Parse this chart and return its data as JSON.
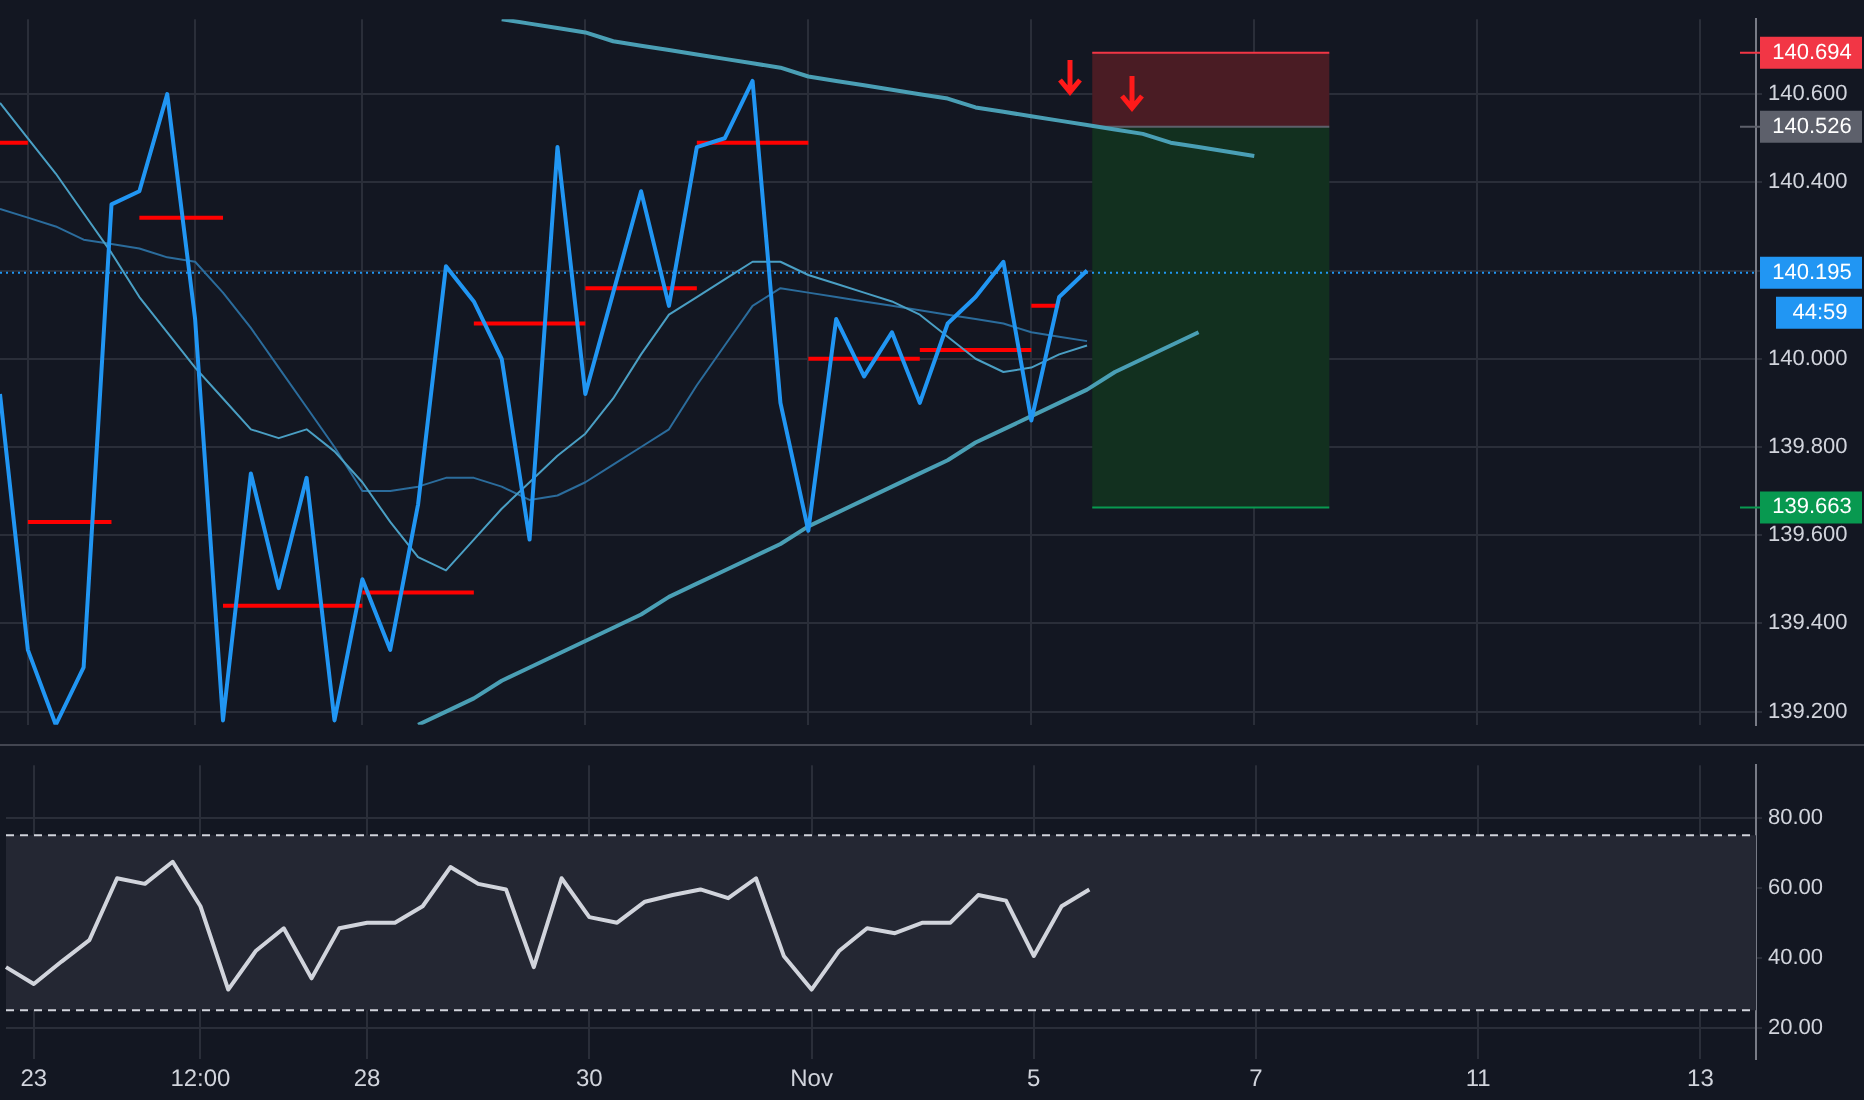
{
  "chart_data": [
    {
      "type": "line",
      "categories": [
        null,
        null,
        null,
        null,
        null,
        null,
        null,
        null,
        null,
        null,
        null,
        null,
        null,
        null,
        null,
        null,
        null,
        null,
        null,
        null,
        null,
        null,
        null,
        null,
        null,
        null,
        null,
        null,
        null,
        null,
        null,
        null,
        null,
        null,
        null,
        null,
        null,
        null,
        null,
        null,
        null,
        null,
        null,
        null,
        null,
        null,
        null,
        null,
        null,
        null,
        null,
        null,
        null,
        null,
        null,
        null,
        null,
        null,
        null,
        null,
        null,
        null,
        null,
        null
      ],
      "ylim": [
        139.17,
        140.77
      ],
      "yticks": [
        {
          "value": 139.2,
          "label": "139.200"
        },
        {
          "value": 139.4,
          "label": "139.400"
        },
        {
          "value": 139.6,
          "label": "139.600"
        },
        {
          "value": 139.8,
          "label": "139.800"
        },
        {
          "value": 140,
          "label": "140.000"
        },
        {
          "value": 140.2,
          "label": null
        },
        {
          "value": 140.4,
          "label": "140.400"
        },
        {
          "value": 140.6,
          "label": "140.600"
        }
      ],
      "grid": true,
      "tick_labels": "y",
      "series": [
        {
          "color": "#2196f3",
          "values": [
            139.92,
            139.34,
            139.17,
            139.3,
            140.35,
            140.38,
            140.6,
            140.09,
            139.18,
            139.74,
            139.48,
            139.73,
            139.18,
            139.5,
            139.34,
            139.67,
            140.21,
            140.13,
            140,
            139.59,
            140.48,
            139.92,
            140.15,
            140.38,
            140.12,
            140.48,
            140.5,
            140.63,
            139.9,
            139.61,
            140.09,
            139.96,
            140.06,
            139.9,
            140.08,
            140.14,
            140.22,
            139.86,
            140.14,
            140.2,
            null,
            null,
            null,
            null,
            null,
            null,
            null,
            null,
            null,
            null,
            null,
            null,
            null,
            null,
            null,
            null,
            null,
            null,
            null,
            null,
            null,
            null,
            null,
            null
          ]
        },
        {
          "color": "#4a9fc4",
          "values": [
            140.58,
            140.5,
            140.42,
            140.33,
            140.24,
            140.14,
            140.06,
            139.98,
            139.91,
            139.84,
            139.82,
            139.84,
            139.79,
            139.72,
            139.63,
            139.55,
            139.52,
            139.59,
            139.66,
            139.72,
            139.78,
            139.83,
            139.91,
            140.01,
            140.1,
            140.14,
            140.18,
            140.22,
            140.22,
            140.19,
            140.17,
            140.15,
            140.13,
            140.1,
            140.05,
            140,
            139.97,
            139.98,
            140.01,
            140.03,
            null,
            null,
            null,
            null,
            null,
            null,
            null,
            null,
            null,
            null,
            null,
            null,
            null,
            null,
            null,
            null,
            null,
            null,
            null,
            null,
            null,
            null,
            null,
            null
          ]
        },
        {
          "color": "#2b6c9c",
          "values": [
            140.34,
            140.32,
            140.3,
            140.27,
            140.26,
            140.25,
            140.23,
            140.22,
            140.15,
            140.07,
            139.98,
            139.89,
            139.8,
            139.7,
            139.7,
            139.71,
            139.73,
            139.73,
            139.71,
            139.68,
            139.69,
            139.72,
            139.76,
            139.8,
            139.84,
            139.94,
            140.03,
            140.12,
            140.16,
            140.15,
            140.14,
            140.13,
            140.12,
            140.11,
            140.1,
            140.09,
            140.08,
            140.06,
            140.05,
            140.04,
            null,
            null,
            null,
            null,
            null,
            null,
            null,
            null,
            null,
            null,
            null,
            null,
            null,
            null,
            null,
            null,
            null,
            null,
            null,
            null,
            null,
            null,
            null,
            null
          ]
        },
        {
          "color": "#ff0000",
          "values": [
            140.49,
            140.49,
            null,
            null,
            null,
            140.32,
            140.32,
            140.32,
            140.32,
            null,
            null,
            null,
            null,
            139.47,
            139.47,
            139.47,
            139.47,
            139.47,
            null,
            null,
            null,
            140.16,
            140.16,
            140.16,
            140.16,
            140.16,
            null,
            null,
            null,
            140,
            140,
            140,
            140,
            140,
            null,
            null,
            null,
            140.12,
            140.12,
            null,
            null,
            null,
            null,
            null,
            null,
            null,
            null,
            null,
            null,
            null,
            null,
            null,
            null,
            null,
            null,
            null,
            null,
            null,
            null,
            null,
            null,
            null,
            null,
            null
          ]
        },
        {
          "color": "#ff0000",
          "values": [
            null,
            139.63,
            139.63,
            139.63,
            139.63,
            null,
            null,
            null,
            139.44,
            139.44,
            139.44,
            139.44,
            139.44,
            139.44,
            null,
            null,
            null,
            140.08,
            140.08,
            140.08,
            140.08,
            140.08,
            null,
            null,
            null,
            140.49,
            140.49,
            140.49,
            140.49,
            140.49,
            null,
            null,
            null,
            140.02,
            140.02,
            140.02,
            140.02,
            140.02,
            null,
            null,
            null,
            null,
            null,
            null,
            null,
            null,
            null,
            null,
            null,
            null,
            null,
            null,
            null,
            null,
            null,
            null,
            null,
            null,
            null,
            null,
            null,
            null,
            null,
            null
          ]
        },
        {
          "color": "#4a9fb5",
          "values": [
            null,
            null,
            null,
            null,
            null,
            null,
            null,
            null,
            null,
            null,
            null,
            null,
            null,
            null,
            null,
            null,
            null,
            null,
            140.77,
            140.76,
            140.75,
            140.74,
            140.72,
            140.71,
            140.7,
            140.69,
            140.68,
            140.67,
            140.66,
            140.64,
            140.63,
            140.62,
            140.61,
            140.6,
            140.59,
            140.57,
            140.56,
            140.55,
            140.54,
            140.53,
            140.52,
            140.51,
            140.49,
            140.48,
            140.47,
            140.46,
            null,
            null,
            null,
            null,
            null,
            null,
            null,
            null,
            null,
            null,
            null,
            null,
            null,
            null,
            null,
            null,
            null,
            null
          ]
        },
        {
          "color": "#4a9fb5",
          "values": [
            null,
            null,
            null,
            null,
            null,
            null,
            null,
            null,
            null,
            null,
            null,
            null,
            null,
            null,
            null,
            139.17,
            139.2,
            139.23,
            139.27,
            139.3,
            139.33,
            139.36,
            139.39,
            139.42,
            139.46,
            139.49,
            139.52,
            139.55,
            139.58,
            139.62,
            139.65,
            139.68,
            139.71,
            139.74,
            139.77,
            139.81,
            139.84,
            139.87,
            139.9,
            139.93,
            139.97,
            140,
            140.03,
            140.06,
            null,
            null,
            null,
            null,
            null,
            null,
            null,
            null,
            null,
            null,
            null,
            null,
            null,
            null,
            null,
            null,
            null,
            null,
            null,
            null
          ]
        }
      ],
      "ref_lines": [
        {
          "axis": "y",
          "value": 140.195,
          "label": "140.195",
          "color": "#2196f3",
          "line_style": "dotted"
        },
        {
          "axis": "y",
          "value": 140.694,
          "color": "#f23645",
          "line_style": "solid"
        },
        {
          "axis": "y",
          "value": 140.526,
          "color": "#5d606b",
          "line_style": "solid"
        },
        {
          "axis": "y",
          "value": 139.663,
          "color": "#089950",
          "line_style": "solid"
        }
      ],
      "bands": [
        {
          "axis": "y",
          "from": 140.526,
          "to": 140.694,
          "color": "#4a1c24"
        },
        {
          "axis": "y",
          "from": 139.663,
          "to": 140.526,
          "color": "#12301f"
        }
      ],
      "annotations": [
        "140.694",
        "140.526",
        "139.663",
        "44:59"
      ]
    },
    {
      "type": "line",
      "categories": [
        null,
        "23",
        null,
        null,
        null,
        null,
        null,
        "12:00",
        null,
        null,
        null,
        null,
        null,
        "28",
        null,
        null,
        null,
        null,
        null,
        null,
        null,
        "30",
        null,
        null,
        null,
        null,
        null,
        null,
        null,
        "Nov",
        null,
        null,
        null,
        null,
        null,
        null,
        null,
        "5",
        null,
        null,
        null,
        null,
        null,
        null,
        null,
        "7",
        null,
        null,
        null,
        null,
        null,
        null,
        null,
        "11",
        null,
        null,
        null,
        null,
        null,
        null,
        null,
        "13",
        null,
        null
      ],
      "ylim": [
        11,
        95
      ],
      "yticks": [
        {
          "value": 20,
          "label": "20.00"
        },
        {
          "value": 40,
          "label": "40.00"
        },
        {
          "value": 60,
          "label": "60.00"
        },
        {
          "value": 80,
          "label": "80.00"
        }
      ],
      "grid": true,
      "series": [
        {
          "color": "#d1d4dc",
          "values": [
            37.3,
            32.5,
            38.9,
            45,
            62.7,
            61.1,
            67.4,
            54.7,
            30.9,
            42,
            48.4,
            34.1,
            48.4,
            50,
            50,
            54.7,
            65.9,
            61.1,
            59.5,
            37.3,
            62.7,
            51.6,
            50,
            56,
            57.9,
            59.5,
            57,
            62.7,
            40.5,
            30.9,
            42,
            48.4,
            47,
            50,
            50,
            57.9,
            56.3,
            40.5,
            54.7,
            59.5,
            null,
            null,
            null,
            null,
            null,
            null,
            null,
            null,
            null,
            null,
            null,
            null,
            null,
            null,
            null,
            null,
            null,
            null,
            null,
            null,
            null,
            null,
            null,
            null
          ]
        }
      ],
      "ref_lines": [
        {
          "axis": "y",
          "value": 75,
          "color": "#d1d4dc",
          "line_style": "dashed"
        },
        {
          "axis": "y",
          "value": 25,
          "color": "#d1d4dc",
          "line_style": "dashed"
        }
      ],
      "bands": [
        {
          "axis": "y",
          "from": 25,
          "to": 75,
          "color": "#242733"
        }
      ]
    }
  ]
}
